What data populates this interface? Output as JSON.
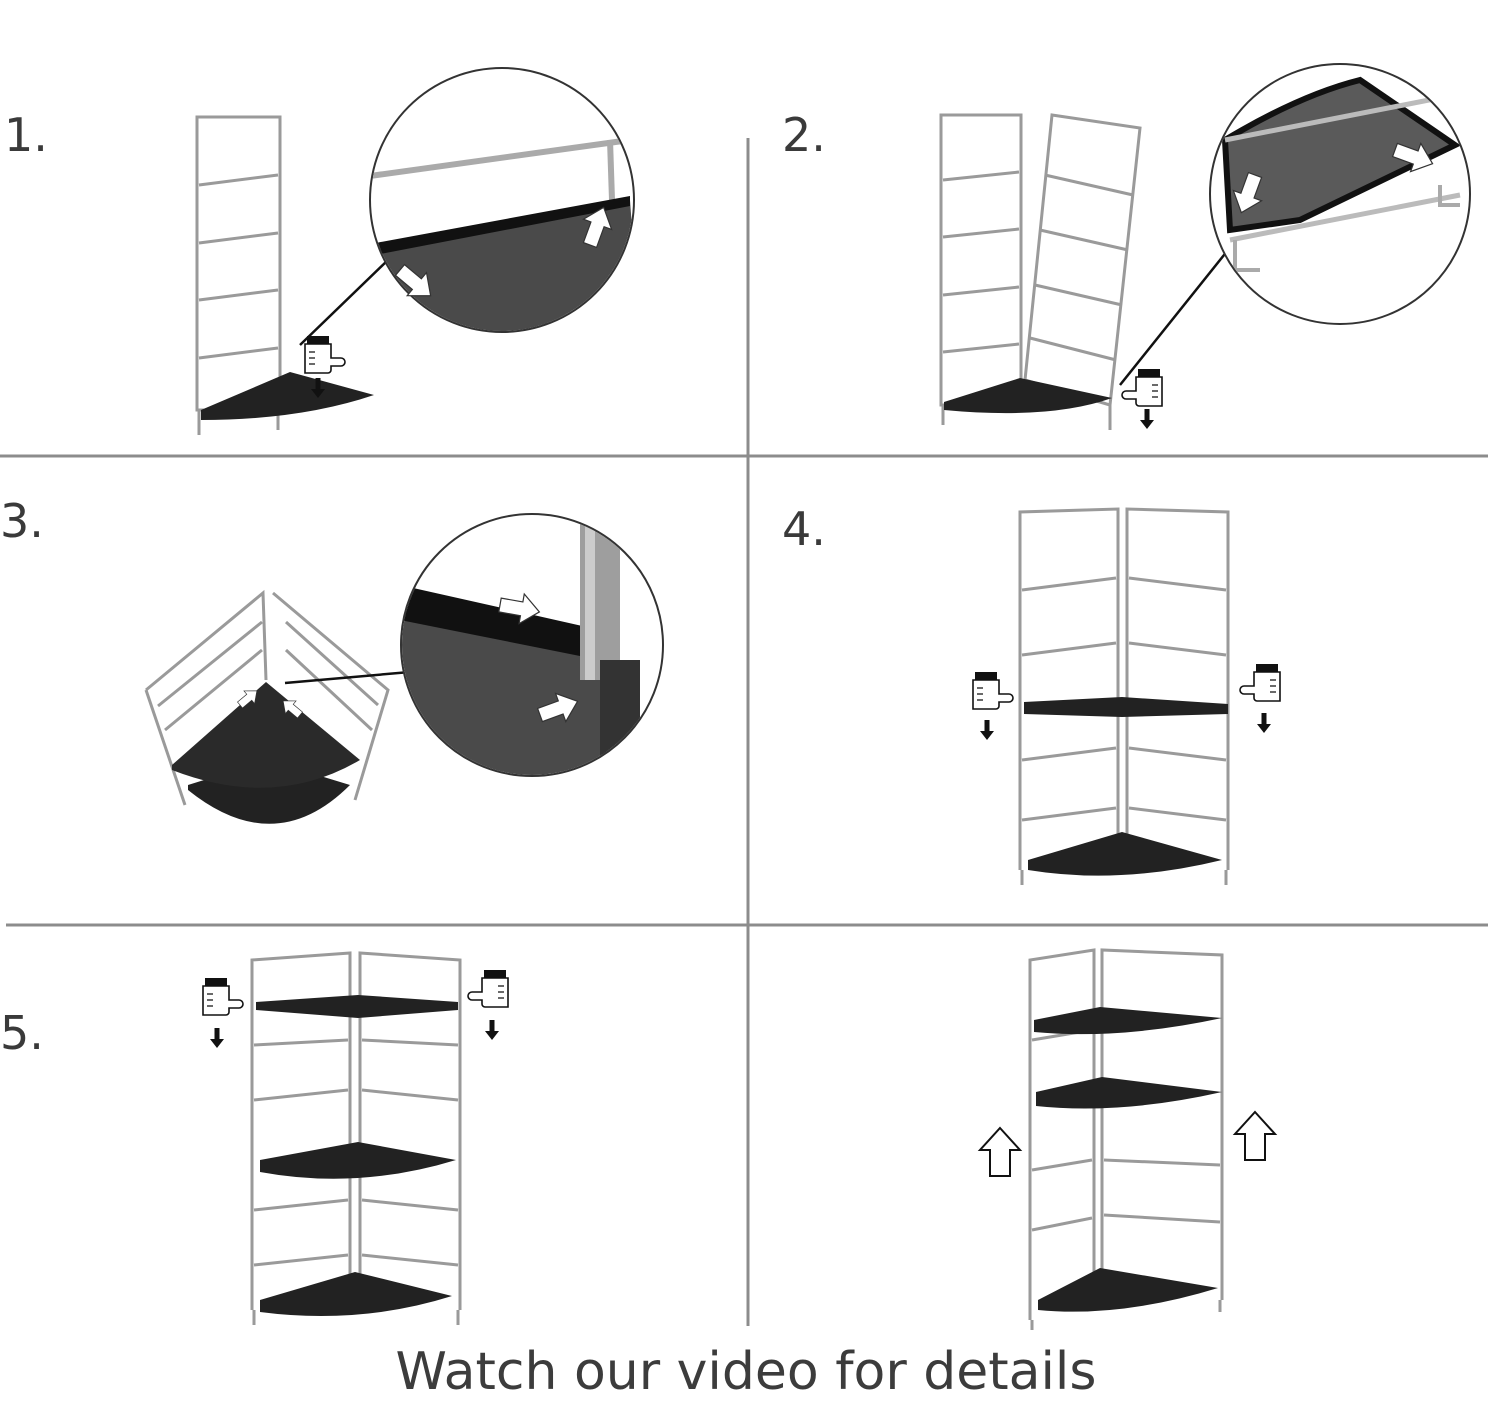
{
  "steps": [
    {
      "label": "1."
    },
    {
      "label": "2."
    },
    {
      "label": "3."
    },
    {
      "label": "4."
    },
    {
      "label": "5."
    },
    {
      "label": ""
    }
  ],
  "footer": {
    "text": "Watch our video for details"
  },
  "colors": {
    "divider": "#8c8c8c",
    "frame_wire": "#9a9a9a",
    "shelf": "#222222",
    "zoom_fill": "#4a4a4a",
    "arrow": "#ffffff"
  },
  "icons": [
    "pointing-hand-icon",
    "down-arrow-icon",
    "up-arrow-icon",
    "white-arrow-icon",
    "magnifier-circle-icon"
  ]
}
